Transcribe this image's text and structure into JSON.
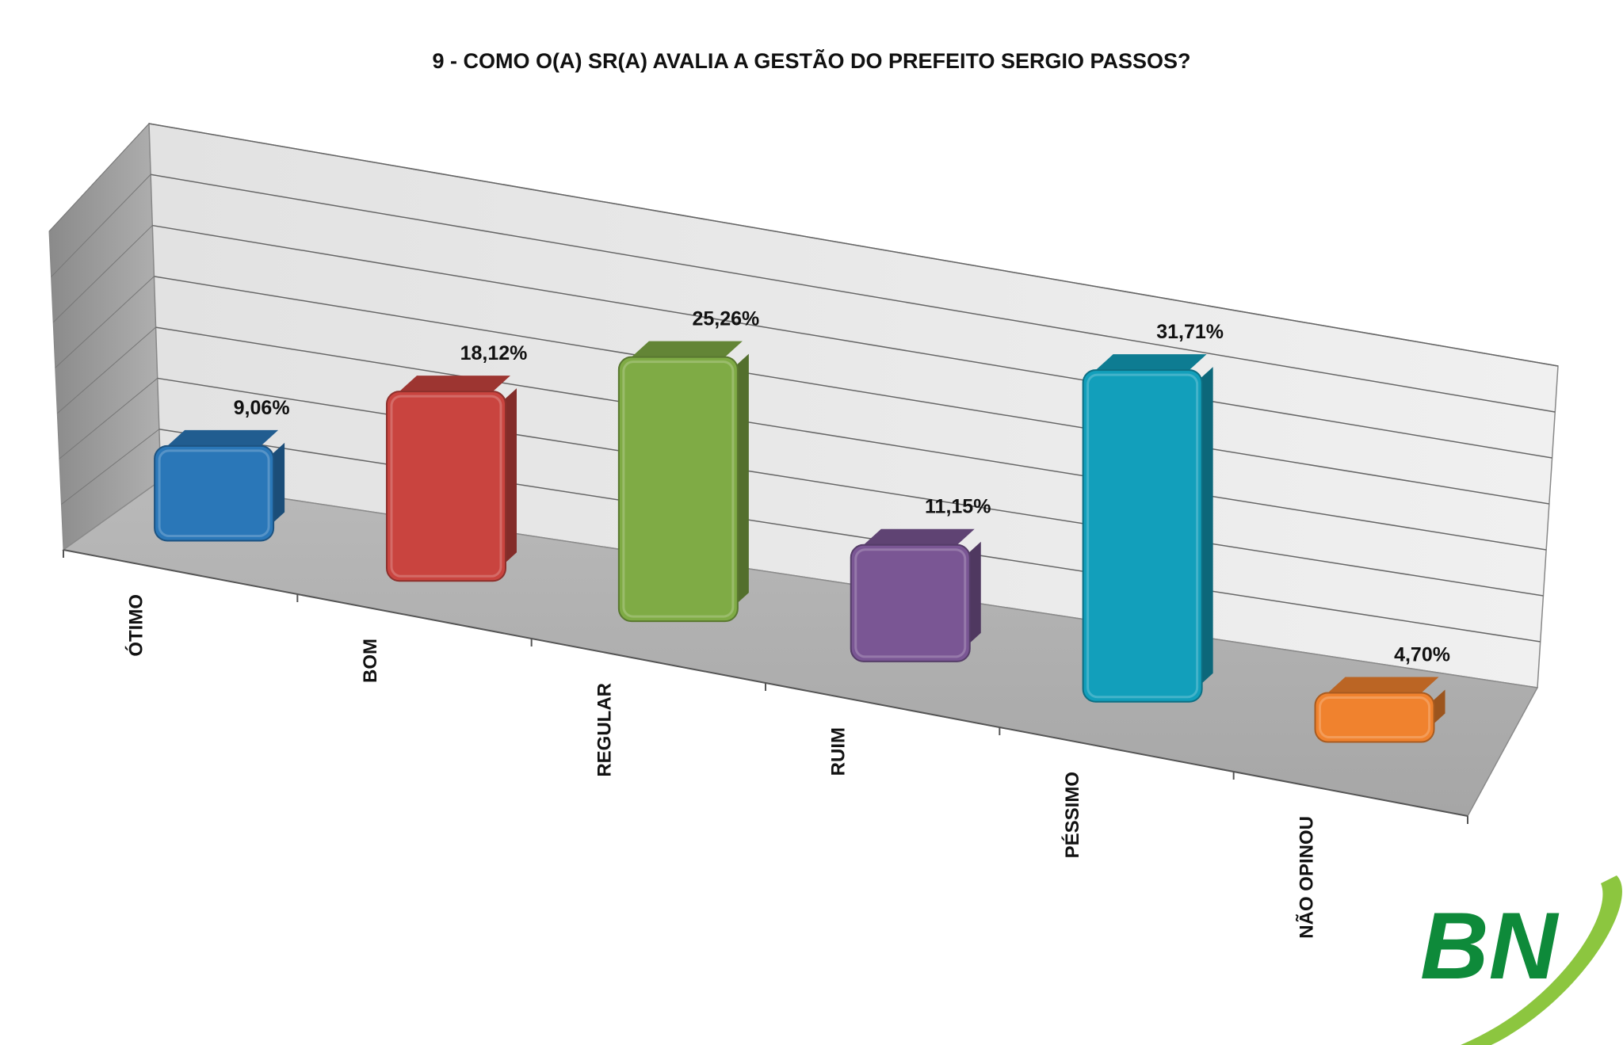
{
  "chart_data": {
    "type": "bar",
    "title": "9 - COMO O(A) SR(A) AVALIA A GESTÃO DO PREFEITO SERGIO PASSOS?",
    "xlabel": "",
    "ylabel": "",
    "ylim": [
      0,
      35
    ],
    "grid": true,
    "style": "3d-perspective",
    "categories": [
      "ÓTIMO",
      "BOM",
      "REGULAR",
      "RUIM",
      "PÉSSIMO",
      "NÃO OPINOU"
    ],
    "values": [
      9.06,
      18.12,
      25.26,
      11.15,
      31.71,
      4.7
    ],
    "data_labels": [
      "9,06%",
      "18,12%",
      "25,26%",
      "11,15%",
      "31,71%",
      "4,70%"
    ],
    "colors": [
      "#2a77b8",
      "#c9443f",
      "#7fab45",
      "#7a5694",
      "#129fbb",
      "#f0822e"
    ]
  },
  "logo": {
    "text": "BN",
    "text_color": "#0e8a3a",
    "swoosh_color": "#8cc63f"
  }
}
